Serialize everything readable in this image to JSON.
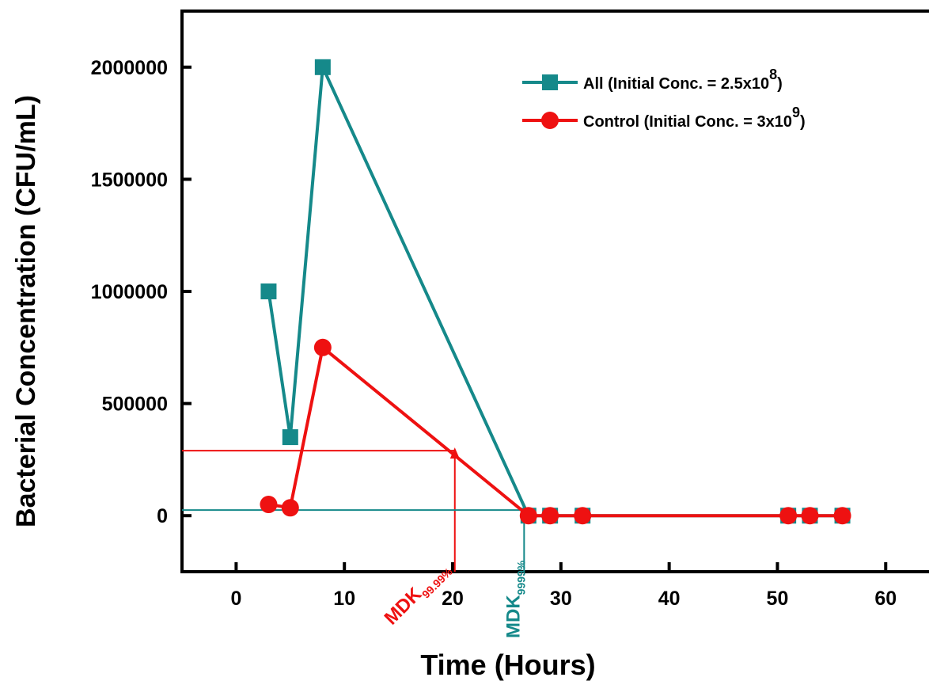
{
  "chart_data": {
    "type": "line",
    "xlabel": "Time (Hours)",
    "ylabel": "Bacterial Concentration (CFU/mL)",
    "xlim": [
      -5,
      64
    ],
    "ylim": [
      -250000,
      2250000
    ],
    "x_ticks": [
      0,
      10,
      20,
      30,
      40,
      50,
      60
    ],
    "y_ticks": [
      0,
      500000,
      1000000,
      1500000,
      2000000
    ],
    "grid": false,
    "legend_position": "top-right",
    "series": [
      {
        "name": "All (Initial Conc. = 2.5x10",
        "name_sup": "8",
        "name_end": ")",
        "color": "#15898a",
        "marker": "square",
        "x": [
          3,
          5,
          8,
          27,
          29,
          32,
          51,
          53,
          56
        ],
        "y": [
          1000000,
          350000,
          2000000,
          0,
          0,
          0,
          0,
          0,
          0
        ]
      },
      {
        "name": "Control (Initial Conc. = 3x10",
        "name_sup": "9",
        "name_end": ")",
        "color": "#ee1111",
        "marker": "circle",
        "x": [
          3,
          5,
          8,
          27,
          29,
          32,
          51,
          53,
          56
        ],
        "y": [
          50000,
          35000,
          750000,
          0,
          0,
          0,
          0,
          0,
          0
        ]
      }
    ],
    "annotations": [
      {
        "label": "MDK",
        "subscript": "99.99%",
        "color": "#ee1111",
        "x": 20.2,
        "y": 290000
      },
      {
        "label": "MDK",
        "subscript": "9999%",
        "color": "#15898a",
        "x": 26.6,
        "y": 25000
      }
    ]
  }
}
